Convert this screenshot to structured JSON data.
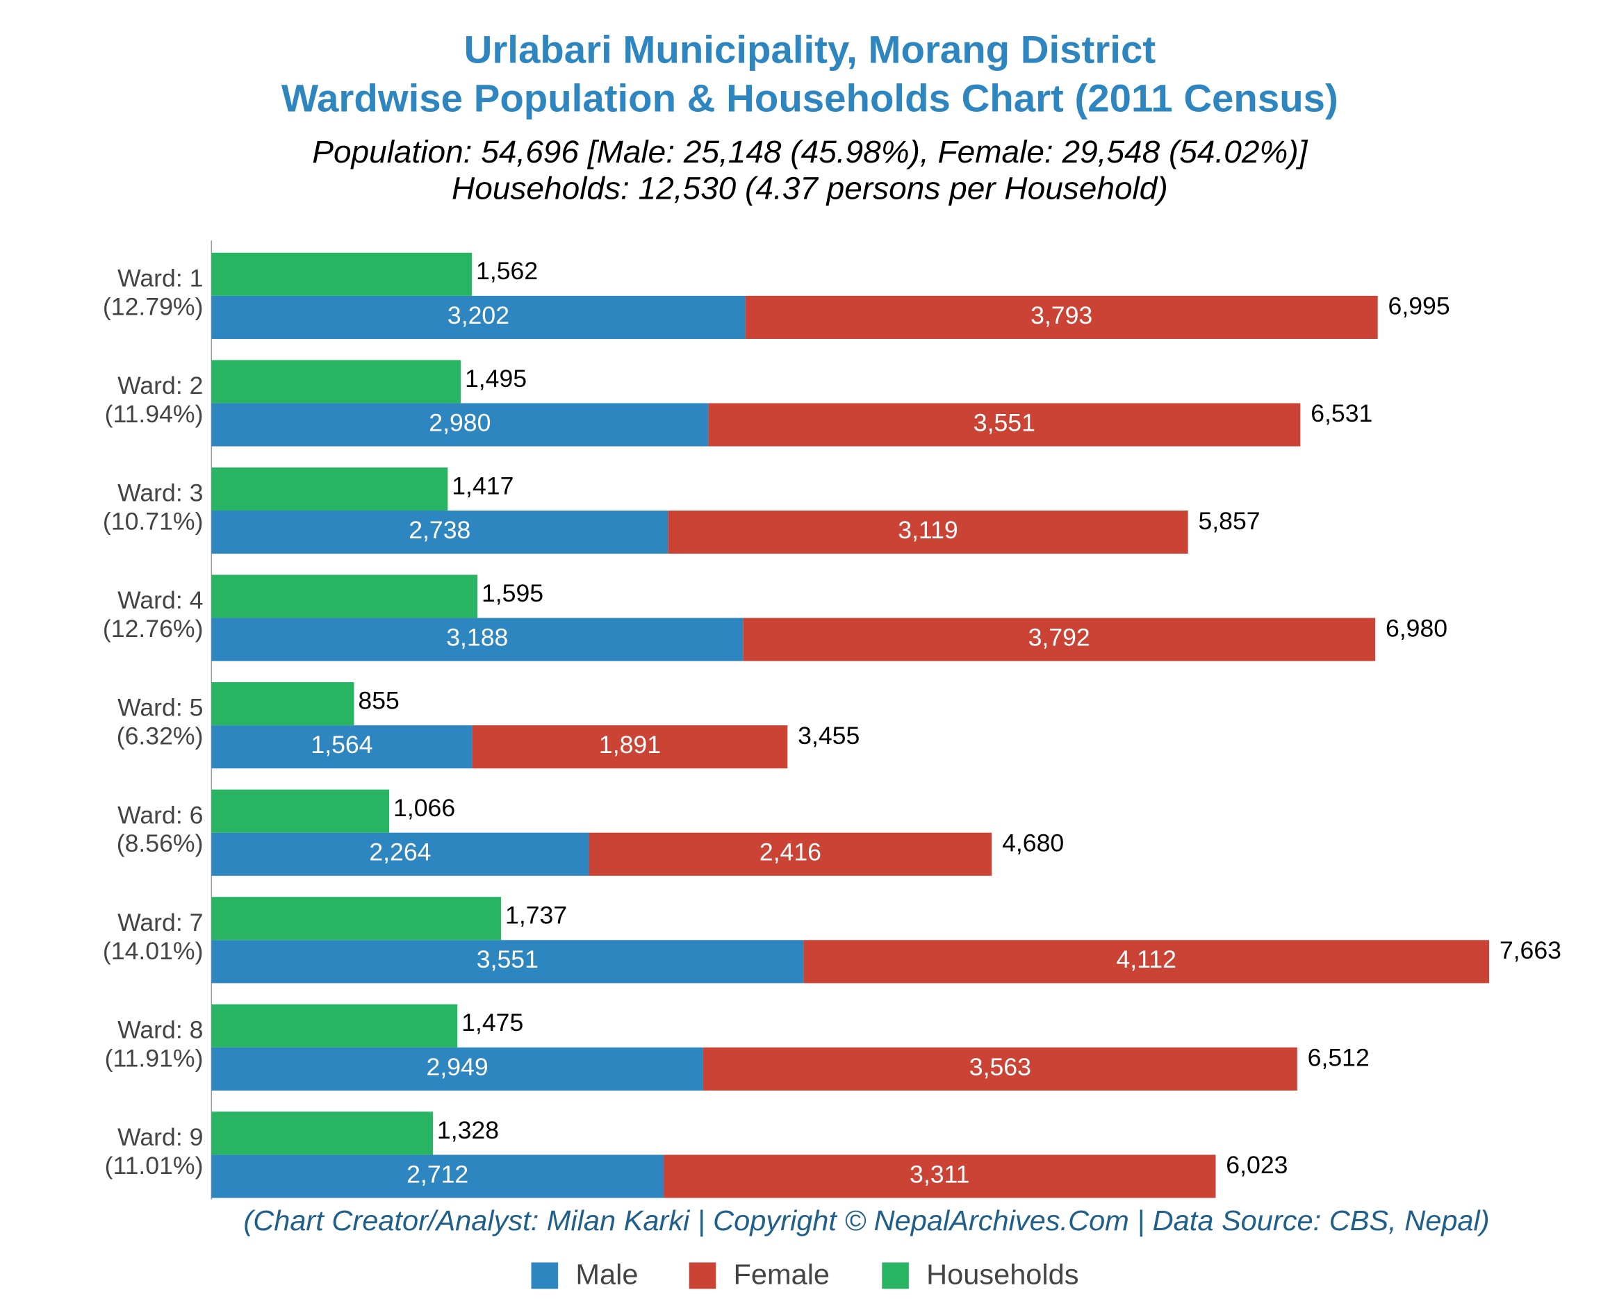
{
  "chart_data": {
    "type": "bar",
    "title": [
      "Urlabari Municipality, Morang District",
      "Wardwise Population & Households Chart (2011 Census)"
    ],
    "subtitle": [
      "Population: 54,696 [Male: 25,148 (45.98%), Female: 29,548 (54.02%)]",
      "Households: 12,530 (4.37 persons per Household)"
    ],
    "caption": "(Chart Creator/Analyst: Milan Karki | Copyright © NepalArchives.Com | Data Source: CBS, Nepal)",
    "categories": [
      "Ward: 1",
      "Ward: 2",
      "Ward: 3",
      "Ward: 4",
      "Ward: 5",
      "Ward: 6",
      "Ward: 7",
      "Ward: 8",
      "Ward: 9"
    ],
    "category_notes": [
      "(12.79%)",
      "(11.94%)",
      "(10.71%)",
      "(12.76%)",
      "(6.32%)",
      "(8.56%)",
      "(14.01%)",
      "(11.91%)",
      "(11.01%)"
    ],
    "series": [
      {
        "name": "Male",
        "color": "#2e86c1",
        "stack": "population",
        "values": [
          3202,
          2980,
          2738,
          3188,
          1564,
          2264,
          3551,
          2949,
          2712
        ],
        "value_labels": [
          "3,202",
          "2,980",
          "2,738",
          "3,188",
          "1,564",
          "2,264",
          "3,551",
          "2,949",
          "2,712"
        ]
      },
      {
        "name": "Female",
        "color": "#cb4335",
        "stack": "population",
        "values": [
          3793,
          3551,
          3119,
          3792,
          1891,
          2416,
          4112,
          3563,
          3311
        ],
        "value_labels": [
          "3,793",
          "3,551",
          "3,119",
          "3,792",
          "1,891",
          "2,416",
          "4,112",
          "3,563",
          "3,311"
        ]
      },
      {
        "name": "Households",
        "color": "#28b463",
        "stack": "households",
        "values": [
          1562,
          1495,
          1417,
          1595,
          855,
          1066,
          1737,
          1475,
          1328
        ],
        "value_labels": [
          "1,562",
          "1,495",
          "1,417",
          "1,595",
          "855",
          "1,066",
          "1,737",
          "1,475",
          "1,328"
        ]
      }
    ],
    "totals": [
      6995,
      6531,
      5857,
      6980,
      3455,
      4680,
      7663,
      6512,
      6023
    ],
    "total_labels": [
      "6,995",
      "6,531",
      "5,857",
      "6,980",
      "3,455",
      "4,680",
      "7,663",
      "6,512",
      "6,023"
    ],
    "xlim": [
      0,
      8000
    ],
    "legend": "bottom"
  }
}
